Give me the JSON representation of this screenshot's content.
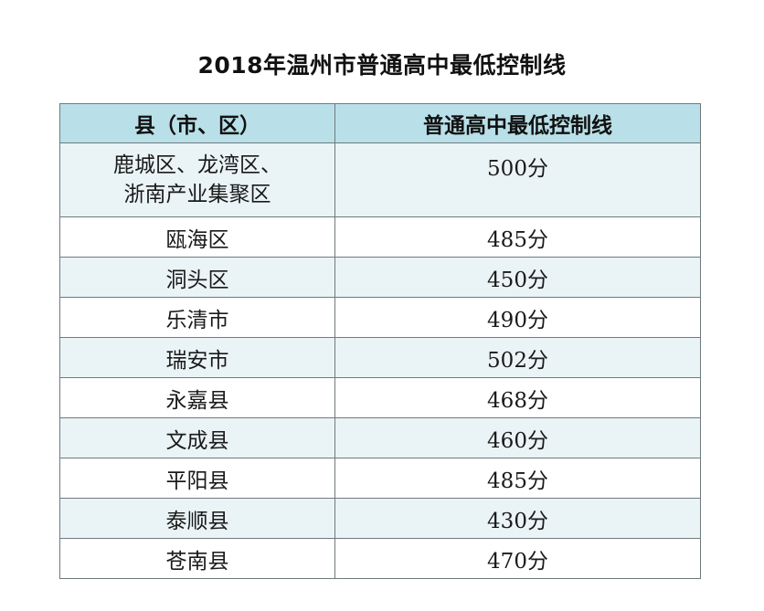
{
  "title": "2018年温州市普通高中最低控制线",
  "table": {
    "headers": [
      "县（市、区）",
      "普通高中最低控制线"
    ],
    "rows": [
      {
        "county_lines": [
          "鹿城区、龙湾区、",
          "浙南产业集聚区"
        ],
        "score": "500分"
      },
      {
        "county": "瓯海区",
        "score": "485分"
      },
      {
        "county": "洞头区",
        "score": "450分"
      },
      {
        "county": "乐清市",
        "score": "490分"
      },
      {
        "county": "瑞安市",
        "score": "502分"
      },
      {
        "county": "永嘉县",
        "score": "468分"
      },
      {
        "county": "文成县",
        "score": "460分"
      },
      {
        "county": "平阳县",
        "score": "485分"
      },
      {
        "county": "泰顺县",
        "score": "430分"
      },
      {
        "county": "苍南县",
        "score": "470分"
      }
    ]
  },
  "colors": {
    "header_bg": "#b9e0e8",
    "row_alt_bg": "#eaf4f7",
    "border": "#6f7a7d"
  }
}
